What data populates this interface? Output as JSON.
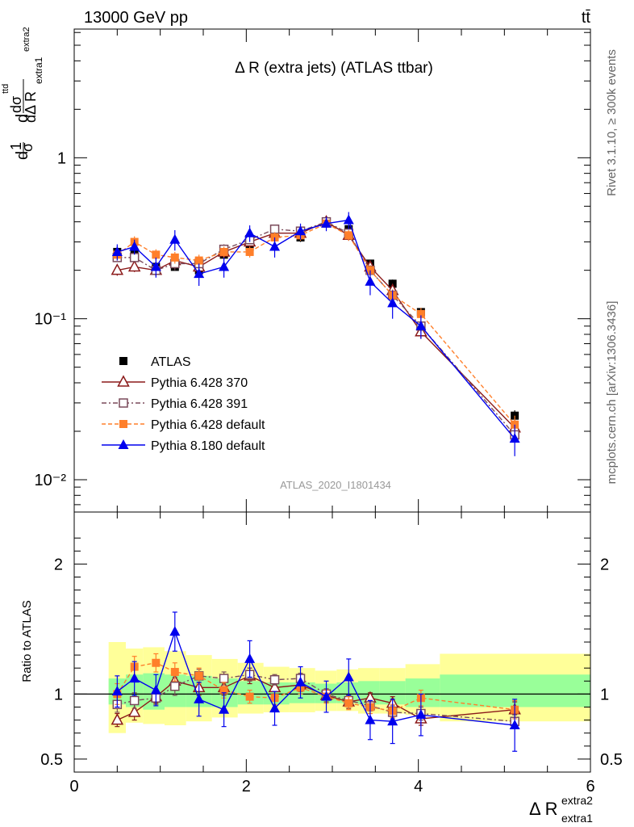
{
  "header": {
    "left": "13000 GeV pp",
    "right": "tt̄"
  },
  "side_labels": {
    "rivet": "Rivet 3.1.10, ≥ 300k events",
    "mcplots": "mcplots.cern.ch [arXiv:1306.3436]"
  },
  "watermark": "ATLAS_2020_I1801434",
  "chart_data": [
    {
      "type": "scatter",
      "title": "Δ R (extra jets) (ATLAS ttbar)",
      "ylabel": "1/σ dσ^ttd / dΔ R_extra1^extra2",
      "xlim": [
        0,
        6
      ],
      "ylim": [
        0.0063,
        6.3
      ],
      "yscale": "log",
      "yticks": [
        0.01,
        0.1,
        1
      ],
      "ytick_labels": [
        "10⁻²",
        "10⁻¹",
        "1"
      ],
      "legend_position": "lower-left",
      "x": [
        0.5,
        0.7,
        0.95,
        1.17,
        1.45,
        1.74,
        2.04,
        2.33,
        2.63,
        2.93,
        3.19,
        3.44,
        3.7,
        4.03,
        5.12
      ],
      "series": [
        {
          "name": "ATLAS",
          "color": "#000000",
          "marker": "square-filled",
          "values": [
            0.26,
            0.25,
            0.21,
            0.21,
            0.2,
            0.25,
            0.28,
            0.33,
            0.32,
            0.4,
            0.36,
            0.22,
            0.165,
            0.11,
            0.025
          ],
          "errors": [
            0.02,
            0.02,
            0.01,
            0.01,
            0.01,
            0.015,
            0.015,
            0.02,
            0.02,
            0.02,
            0.02,
            0.01,
            0.01,
            0.006,
            0.002
          ]
        },
        {
          "name": "Pythia 6.428 370",
          "color": "#8b1a1a",
          "marker": "triangle-open",
          "dash": "",
          "values": [
            0.2,
            0.21,
            0.2,
            0.23,
            0.21,
            0.26,
            0.3,
            0.34,
            0.34,
            0.4,
            0.33,
            0.21,
            0.15,
            0.083,
            0.021
          ],
          "errors": [
            0.015,
            0.015,
            0.015,
            0.02,
            0.015,
            0.02,
            0.02,
            0.02,
            0.02,
            0.025,
            0.025,
            0.02,
            0.015,
            0.008,
            0.003
          ]
        },
        {
          "name": "Pythia 6.428 391",
          "color": "#7a4a5a",
          "marker": "square-open",
          "dash": "6,3,2,3",
          "values": [
            0.24,
            0.24,
            0.2,
            0.22,
            0.22,
            0.27,
            0.31,
            0.36,
            0.35,
            0.4,
            0.34,
            0.2,
            0.14,
            0.09,
            0.019
          ],
          "errors": [
            0.015,
            0.015,
            0.015,
            0.02,
            0.015,
            0.02,
            0.02,
            0.02,
            0.02,
            0.025,
            0.025,
            0.015,
            0.012,
            0.008,
            0.002
          ]
        },
        {
          "name": "Pythia 6.428 default",
          "color": "#ff7f2a",
          "marker": "square-filled",
          "dash": "5,3",
          "values": [
            0.25,
            0.3,
            0.25,
            0.24,
            0.23,
            0.26,
            0.26,
            0.32,
            0.33,
            0.39,
            0.33,
            0.2,
            0.14,
            0.107,
            0.022
          ],
          "errors": [
            0.02,
            0.025,
            0.02,
            0.02,
            0.02,
            0.02,
            0.02,
            0.025,
            0.025,
            0.025,
            0.025,
            0.015,
            0.012,
            0.01,
            0.003
          ]
        },
        {
          "name": "Pythia 8.180 default",
          "color": "#0000ee",
          "marker": "triangle-filled",
          "dash": "",
          "values": [
            0.26,
            0.28,
            0.21,
            0.31,
            0.19,
            0.21,
            0.34,
            0.28,
            0.35,
            0.39,
            0.41,
            0.17,
            0.125,
            0.09,
            0.018
          ],
          "errors": [
            0.03,
            0.03,
            0.03,
            0.045,
            0.03,
            0.03,
            0.04,
            0.04,
            0.04,
            0.04,
            0.05,
            0.03,
            0.025,
            0.015,
            0.004
          ]
        }
      ]
    },
    {
      "type": "scatter",
      "ylabel": "Ratio to ATLAS",
      "xlabel": "Δ R_extra1^extra2",
      "xlim": [
        0,
        6
      ],
      "ylim": [
        0.4,
        2.4
      ],
      "yticks": [
        0.5,
        1,
        2
      ],
      "ytick_labels": [
        "0.5",
        "1",
        "2"
      ],
      "xticks": [
        0,
        2,
        4,
        6
      ],
      "xtick_labels": [
        "0",
        "2",
        "4",
        "6"
      ],
      "reference_line": 1,
      "uncertainty_bands": [
        {
          "x0": 0.4,
          "x1": 0.6,
          "stat": [
            0.92,
            1.12
          ],
          "total": [
            0.7,
            1.4
          ]
        },
        {
          "x0": 0.6,
          "x1": 0.8,
          "stat": [
            0.9,
            1.15
          ],
          "total": [
            0.78,
            1.35
          ]
        },
        {
          "x0": 0.8,
          "x1": 1.05,
          "stat": [
            0.88,
            1.16
          ],
          "total": [
            0.77,
            1.36
          ]
        },
        {
          "x0": 1.05,
          "x1": 1.3,
          "stat": [
            0.9,
            1.15
          ],
          "total": [
            0.76,
            1.33
          ]
        },
        {
          "x0": 1.3,
          "x1": 1.6,
          "stat": [
            0.9,
            1.14
          ],
          "total": [
            0.79,
            1.3
          ]
        },
        {
          "x0": 1.6,
          "x1": 1.9,
          "stat": [
            0.9,
            1.12
          ],
          "total": [
            0.82,
            1.27
          ]
        },
        {
          "x0": 1.9,
          "x1": 2.2,
          "stat": [
            0.92,
            1.1
          ],
          "total": [
            0.85,
            1.24
          ]
        },
        {
          "x0": 2.2,
          "x1": 2.5,
          "stat": [
            0.92,
            1.09
          ],
          "total": [
            0.86,
            1.21
          ]
        },
        {
          "x0": 2.5,
          "x1": 2.8,
          "stat": [
            0.93,
            1.09
          ],
          "total": [
            0.86,
            1.2
          ]
        },
        {
          "x0": 2.8,
          "x1": 3.05,
          "stat": [
            0.93,
            1.08
          ],
          "total": [
            0.87,
            1.18
          ]
        },
        {
          "x0": 3.05,
          "x1": 3.3,
          "stat": [
            0.93,
            1.09
          ],
          "total": [
            0.87,
            1.19
          ]
        },
        {
          "x0": 3.3,
          "x1": 3.55,
          "stat": [
            0.92,
            1.1
          ],
          "total": [
            0.85,
            1.2
          ]
        },
        {
          "x0": 3.55,
          "x1": 3.85,
          "stat": [
            0.92,
            1.1
          ],
          "total": [
            0.85,
            1.2
          ]
        },
        {
          "x0": 3.85,
          "x1": 4.25,
          "stat": [
            0.9,
            1.12
          ],
          "total": [
            0.84,
            1.23
          ]
        },
        {
          "x0": 4.25,
          "x1": 6.0,
          "stat": [
            0.9,
            1.15
          ],
          "total": [
            0.79,
            1.31
          ]
        }
      ],
      "series": [
        {
          "name": "ATLAS",
          "values": [
            1,
            1,
            1,
            1,
            1,
            1,
            1,
            1,
            1,
            1,
            1,
            1,
            1,
            1,
            1
          ]
        },
        {
          "name": "Pythia 6.428 370",
          "values": [
            0.8,
            0.86,
            0.98,
            1.1,
            1.05,
            1.05,
            1.14,
            1.05,
            1.07,
            0.99,
            0.94,
            0.97,
            0.93,
            0.81,
            0.88
          ],
          "errors": [
            0.05,
            0.06,
            0.05,
            0.07,
            0.06,
            0.06,
            0.06,
            0.05,
            0.05,
            0.05,
            0.05,
            0.04,
            0.05,
            0.05,
            0.06
          ]
        },
        {
          "name": "Pythia 6.428 391",
          "values": [
            0.92,
            0.95,
            0.97,
            1.06,
            1.14,
            1.12,
            1.15,
            1.11,
            1.12,
            1.0,
            0.95,
            0.91,
            0.86,
            0.85,
            0.79
          ],
          "errors": [
            0.06,
            0.06,
            0.05,
            0.07,
            0.05,
            0.05,
            0.05,
            0.04,
            0.04,
            0.04,
            0.04,
            0.04,
            0.05,
            0.05,
            0.05
          ]
        },
        {
          "name": "Pythia 6.428 default",
          "values": [
            1.0,
            1.21,
            1.24,
            1.17,
            1.14,
            1.03,
            0.98,
            0.97,
            1.05,
            0.98,
            0.93,
            0.9,
            0.87,
            0.97,
            0.88
          ],
          "errors": [
            0.08,
            0.08,
            0.07,
            0.07,
            0.06,
            0.06,
            0.05,
            0.05,
            0.05,
            0.05,
            0.05,
            0.05,
            0.05,
            0.06,
            0.07
          ]
        },
        {
          "name": "Pythia 8.180 default",
          "values": [
            1.02,
            1.12,
            1.03,
            1.48,
            0.96,
            0.88,
            1.27,
            0.89,
            1.09,
            0.98,
            1.13,
            0.8,
            0.79,
            0.84,
            0.76
          ],
          "errors": [
            0.12,
            0.13,
            0.12,
            0.15,
            0.13,
            0.13,
            0.14,
            0.13,
            0.12,
            0.12,
            0.14,
            0.15,
            0.17,
            0.16,
            0.2
          ]
        }
      ]
    }
  ]
}
